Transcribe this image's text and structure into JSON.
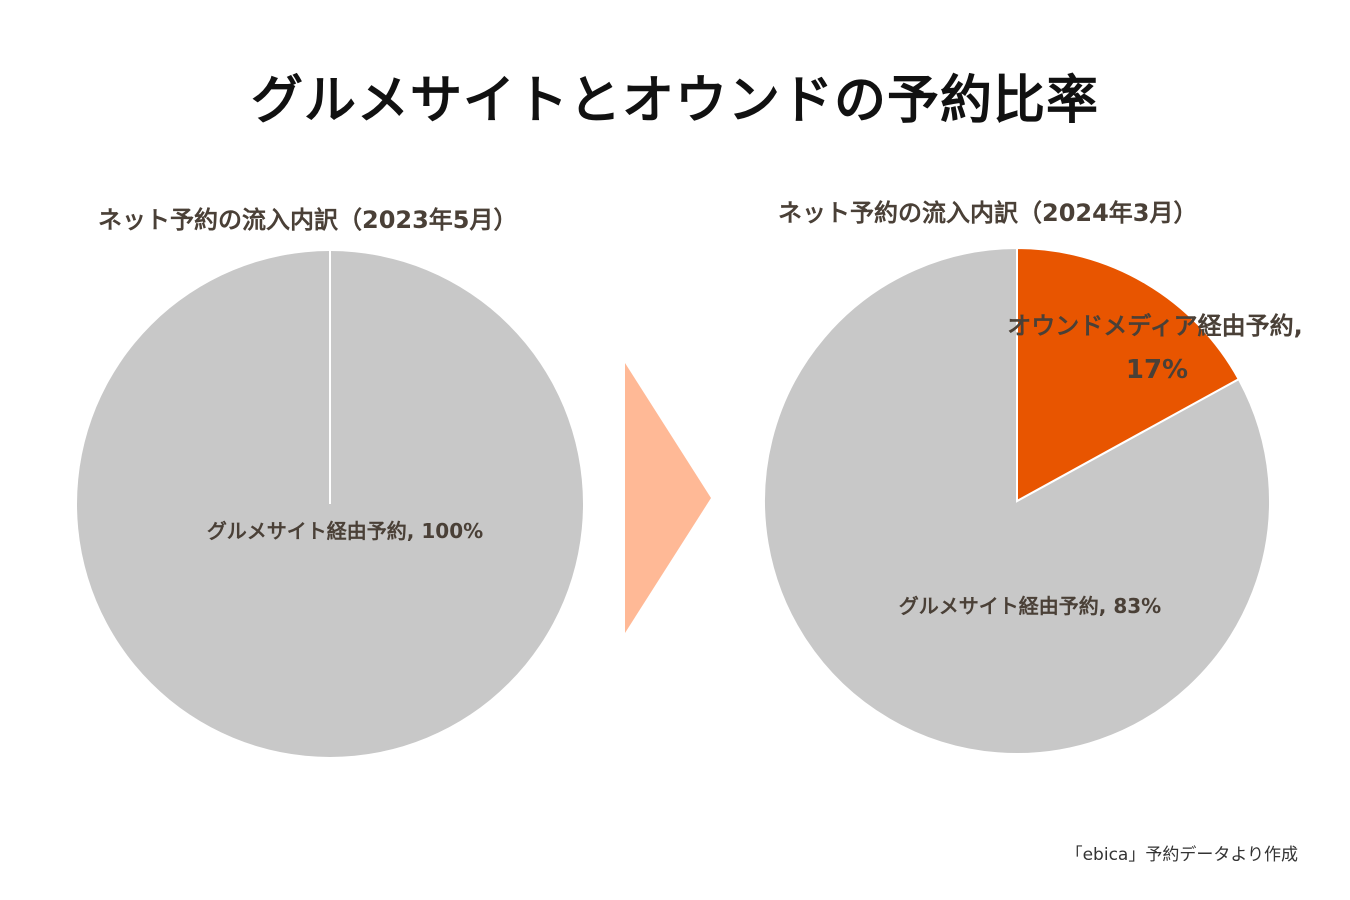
{
  "title": "グルメサイトとオウンドの予約比率",
  "source": "「ebica」予約データより作成",
  "colors": {
    "gourmet": "#c8c8c8",
    "owned": "#e85500",
    "arrow": "#ffb996"
  },
  "chart_data": [
    {
      "type": "pie",
      "title": "ネット予約の流入内訳（2023年5月）",
      "slices": [
        {
          "name": "グルメサイト経由予約",
          "value": 100,
          "label": "グルメサイト経由予約, 100%"
        }
      ]
    },
    {
      "type": "pie",
      "title": "ネット予約の流入内訳（2024年3月）",
      "slices": [
        {
          "name": "オウンドメディア経由予約",
          "value": 17,
          "label_line1": "オウンドメディア経由予約,",
          "label_line2": "17%"
        },
        {
          "name": "グルメサイト経由予約",
          "value": 83,
          "label": "グルメサイト経由予約, 83%"
        }
      ]
    }
  ]
}
